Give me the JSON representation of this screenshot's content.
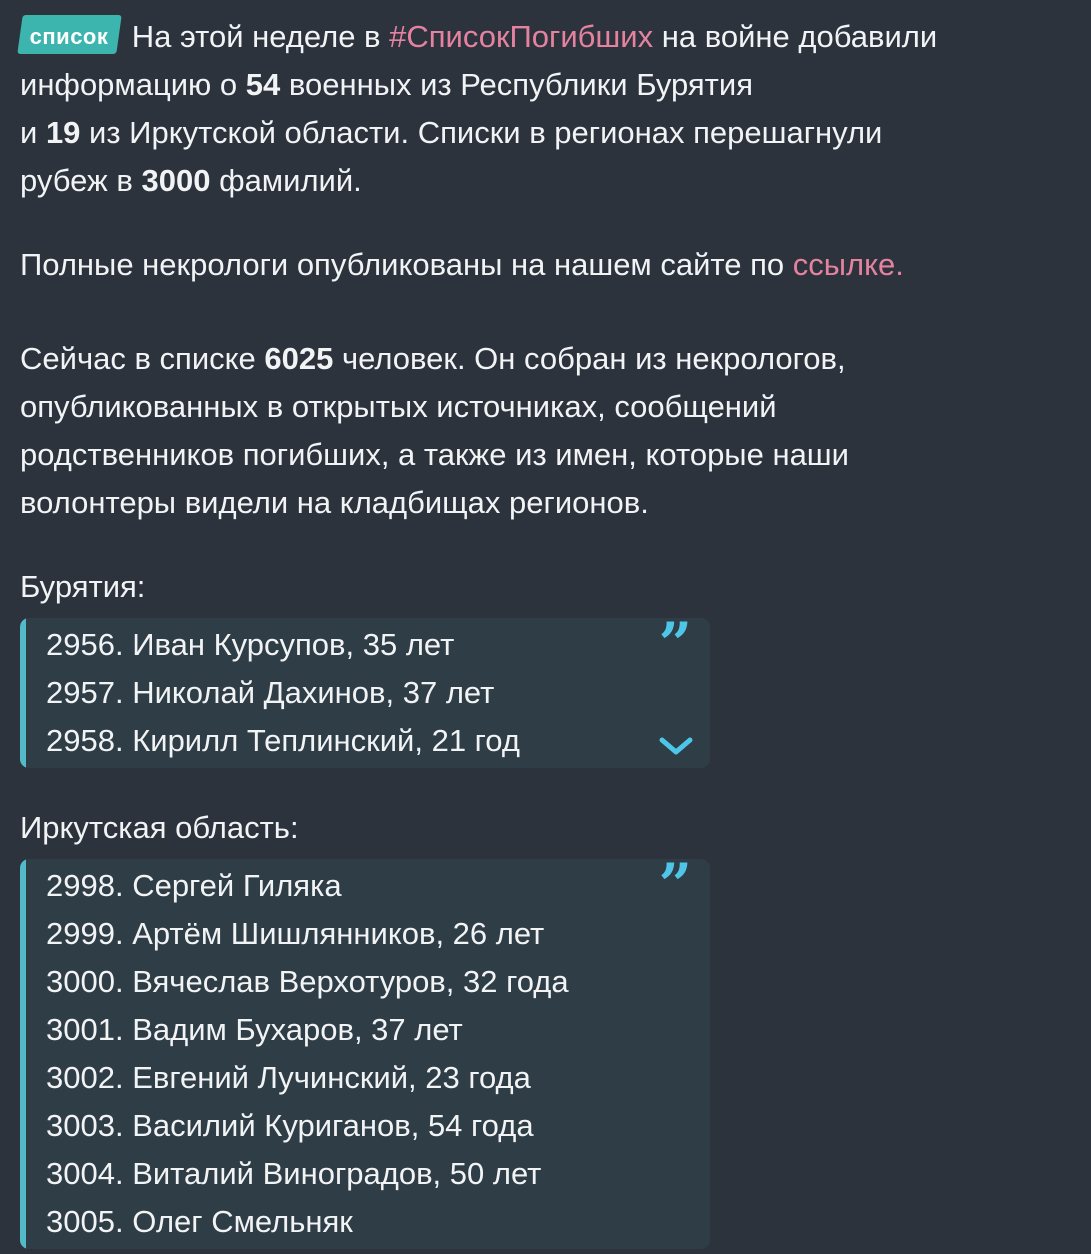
{
  "theme": {
    "page_bg": "#2c333d",
    "quote_bg": "#2e3d46",
    "quote_bar_teal": "#53bac7",
    "icon_cyan": "#4ec6e8",
    "badge_bg": "#3bb5ad",
    "badge_text": "#ffffff",
    "text_color": "#f1f3f5",
    "link_pink": "#e5829f"
  },
  "icons": {
    "quote_glyph": "”"
  },
  "post": {
    "badge_label": "список",
    "intro": {
      "line1": [
        {
          "t": "На этой неделе в "
        },
        {
          "t": "#СписокПогибших",
          "s": "lnk",
          "name": "hashtag-link",
          "link": true
        },
        {
          "t": " на войне добавили"
        }
      ],
      "rest": [
        [
          {
            "t": "информацию о "
          },
          {
            "t": "54",
            "s": "b"
          },
          {
            "t": " военных из Республики Бурятия"
          }
        ],
        [
          {
            "t": "и "
          },
          {
            "t": "19",
            "s": "b"
          },
          {
            "t": " из Иркутской области. Списки в регионах перешагнули"
          }
        ],
        [
          {
            "t": "рубеж в "
          },
          {
            "t": "3000",
            "s": "b"
          },
          {
            "t": " фамилий."
          }
        ]
      ]
    },
    "obituaries": [
      [
        {
          "t": "Полные некрологи опубликованы на нашем сайте по "
        },
        {
          "t": "ссылке.",
          "s": "lnk",
          "name": "site-link",
          "link": true
        }
      ]
    ],
    "summary": [
      [
        {
          "t": "Сейчас в списке "
        },
        {
          "t": "6025",
          "s": "b"
        },
        {
          "t": " человек. Он собран из некрологов,"
        }
      ],
      [
        {
          "t": "опубликованных в открытых источниках, сообщений"
        }
      ],
      [
        {
          "t": "родственников погибших, а также из имен, которые наши"
        }
      ],
      [
        {
          "t": "волонтеры видели на кладбищах регионов."
        }
      ]
    ],
    "sections": [
      {
        "heading": "Бурятия:",
        "rows": [
          "2956. Иван Курсупов, 35 лет",
          "2957. Николай Дахинов, 37 лет",
          "2958. Кирилл Теплинский, 21 год"
        ]
      },
      {
        "heading": "Иркутская область:",
        "rows": [
          "2998. Сергей Гиляка",
          "2999. Артём Шишлянников, 26 лет",
          "3000. Вячеслав Верхотуров, 32 года",
          "3001. Вадим Бухаров, 37 лет",
          "3002. Евгений Лучинский, 23 года",
          "3003. Василий Куриганов, 54 года",
          "3004. Виталий Виноградов, 50 лет",
          "3005. Олег Смельняк"
        ]
      }
    ]
  }
}
